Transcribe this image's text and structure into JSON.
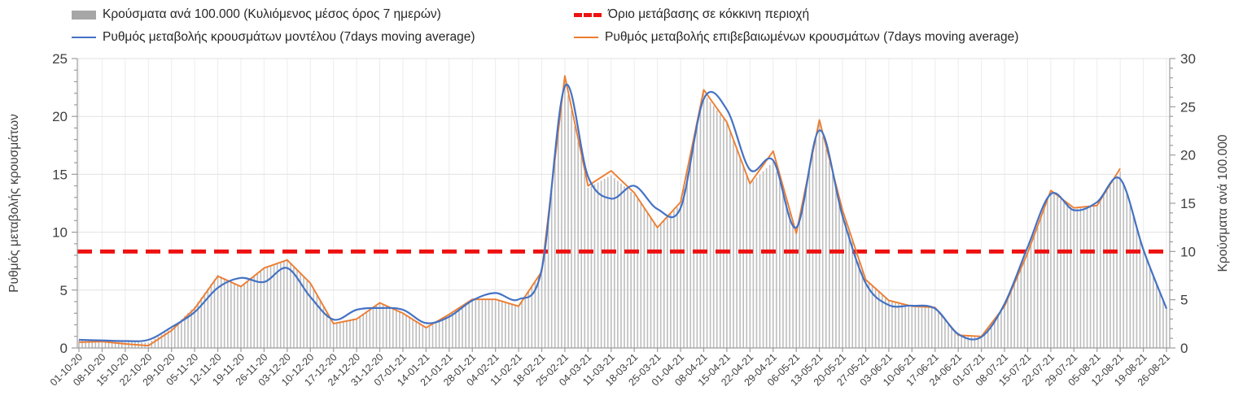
{
  "legend": {
    "bars": "Κρούσματα ανά 100.000 (Κυλιόμενος μέσος όρος 7 ημερών)",
    "threshold": "Όριο μετάβασης σε κόκκινη περιοχή",
    "model": "Ρυθμός μεταβολής κρουσμάτων μοντέλου (7days moving average)",
    "confirmed": "Ρυθμός μεταβολής επιβεβαιωμένων κρουσμάτων (7days moving average)"
  },
  "axes": {
    "left_title": "Ρυθμός μεταβολής κρουσμάτων",
    "right_title": "Κρούσματα ανά 100.000",
    "left_ticks": [
      0,
      5,
      10,
      15,
      20,
      25
    ],
    "right_ticks": [
      0,
      5,
      10,
      15,
      20,
      25,
      30
    ],
    "left_range": [
      0,
      25
    ],
    "right_range": [
      0,
      30
    ]
  },
  "colors": {
    "bars": "#bdbdbd",
    "bars_legend": "#a6a6a6",
    "model": "#4472c4",
    "confirmed": "#ed7d31",
    "threshold": "#ee1111",
    "grid": "#e2e2e2",
    "grid_vertical": "#ececec",
    "axis": "#9c9c9c",
    "tick_text": "#404040"
  },
  "chart_data": {
    "type": "bar",
    "title": "",
    "xlabel": "",
    "ylabel_left": "Ρυθμός μεταβολής κρουσμάτων",
    "ylabel_right": "Κρούσματα ανά 100.000",
    "ylim_left": [
      0,
      25
    ],
    "ylim_right": [
      0,
      30
    ],
    "grid": true,
    "legend_position": "top",
    "categories": [
      "01-10-20",
      "08-10-20",
      "15-10-20",
      "22-10-20",
      "29-10-20",
      "05-11-20",
      "12-11-20",
      "19-11-20",
      "26-11-20",
      "03-12-20",
      "10-12-20",
      "17-12-20",
      "24-12-20",
      "31-12-20",
      "07-01-21",
      "14-01-21",
      "21-01-21",
      "28-01-21",
      "04-02-21",
      "11-02-21",
      "18-02-21",
      "25-02-21",
      "04-03-21",
      "11-03-21",
      "18-03-21",
      "25-03-21",
      "01-04-21",
      "08-04-21",
      "15-04-21",
      "22-04-21",
      "29-04-21",
      "06-05-21",
      "13-05-21",
      "20-05-21",
      "27-05-21",
      "03-06-21",
      "10-06-21",
      "17-06-21",
      "24-06-21",
      "01-07-21",
      "08-07-21",
      "15-07-21",
      "22-07-21",
      "29-07-21",
      "05-08-21",
      "12-08-21",
      "19-08-21",
      "26-08-21"
    ],
    "series": [
      {
        "name": "Κρούσματα ανά 100.000 (Κυλιόμενος μέσος όρος 7 ημερών)",
        "type": "bar",
        "axis": "right",
        "values": [
          0.8,
          0.8,
          0.65,
          0.55,
          2.0,
          4.3,
          7.6,
          6.4,
          8.2,
          9.2,
          6.6,
          2.6,
          3.1,
          4.7,
          3.6,
          2.2,
          3.5,
          5.0,
          5.0,
          4.4,
          8.0,
          27.8,
          16.6,
          17.9,
          15.9,
          12.6,
          14.9,
          26.4,
          23.3,
          17.0,
          19.3,
          12.0,
          23.2,
          14.1,
          7.1,
          4.9,
          4.3,
          4.2,
          1.3,
          1.2,
          4.4,
          9.9,
          16.2,
          14.4,
          14.8,
          18.3,
          10.1,
          4.1
        ]
      },
      {
        "name": "Ρυθμός μεταβολής κρουσμάτων μοντέλου (7days moving average)",
        "type": "line",
        "axis": "left",
        "values": [
          0.7,
          0.65,
          0.6,
          0.7,
          1.8,
          3.1,
          5.2,
          6.05,
          5.7,
          6.9,
          4.4,
          2.45,
          3.3,
          3.45,
          3.3,
          2.15,
          2.7,
          4.1,
          4.75,
          4.2,
          6.8,
          22.6,
          14.8,
          12.9,
          14.0,
          12.0,
          12.1,
          21.5,
          20.6,
          15.4,
          16.2,
          10.4,
          18.8,
          11.4,
          5.6,
          3.7,
          3.65,
          3.4,
          1.2,
          0.95,
          3.8,
          8.7,
          13.3,
          11.9,
          12.6,
          14.6,
          8.5,
          3.4
        ]
      },
      {
        "name": "Ρυθμός μεταβολής επιβεβαιωμένων κρουσμάτων (7days moving average)",
        "type": "line",
        "axis": "left",
        "values": [
          0.5,
          0.55,
          0.35,
          0.2,
          1.5,
          3.4,
          6.2,
          5.3,
          6.9,
          7.6,
          5.6,
          2.1,
          2.5,
          3.9,
          3.0,
          1.75,
          2.9,
          4.2,
          4.2,
          3.6,
          6.6,
          23.5,
          14.0,
          15.3,
          13.4,
          10.4,
          12.6,
          22.3,
          19.5,
          14.2,
          17.0,
          9.9,
          19.7,
          11.9,
          5.9,
          4.1,
          3.6,
          3.5,
          1.1,
          1.0,
          3.6,
          8.2,
          13.6,
          12.1,
          12.3,
          15.5,
          null,
          null
        ]
      },
      {
        "name": "Όριο μετάβασης σε κόκκινη περιοχή",
        "type": "threshold",
        "axis": "right",
        "value": 10
      }
    ]
  }
}
